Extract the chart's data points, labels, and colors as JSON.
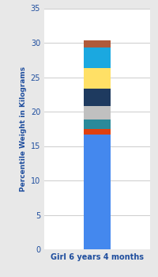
{
  "category": "Girl 6 years 4 months",
  "segments": [
    {
      "value": 16.7,
      "color": "#4488EE"
    },
    {
      "value": 0.8,
      "color": "#E04010"
    },
    {
      "value": 1.3,
      "color": "#2A8A9A"
    },
    {
      "value": 2.0,
      "color": "#C0C0C0"
    },
    {
      "value": 2.5,
      "color": "#1E3A5F"
    },
    {
      "value": 3.0,
      "color": "#FFE066"
    },
    {
      "value": 3.0,
      "color": "#1BA8E0"
    },
    {
      "value": 1.0,
      "color": "#B05A3A"
    }
  ],
  "ylim": [
    0,
    35
  ],
  "yticks": [
    0,
    5,
    10,
    15,
    20,
    25,
    30,
    35
  ],
  "ylabel": "Percentile Weight in Kilograms",
  "bg_color": "#E8E8E8",
  "plot_bg_color": "#FFFFFF",
  "bar_width": 0.35,
  "xlabel_color": "#1F4E9E",
  "ylabel_color": "#1F4E9E",
  "tick_color": "#1F4E9E",
  "grid_color": "#CCCCCC",
  "tick_fontsize": 7,
  "ylabel_fontsize": 6.5,
  "xlabel_fontsize": 7
}
